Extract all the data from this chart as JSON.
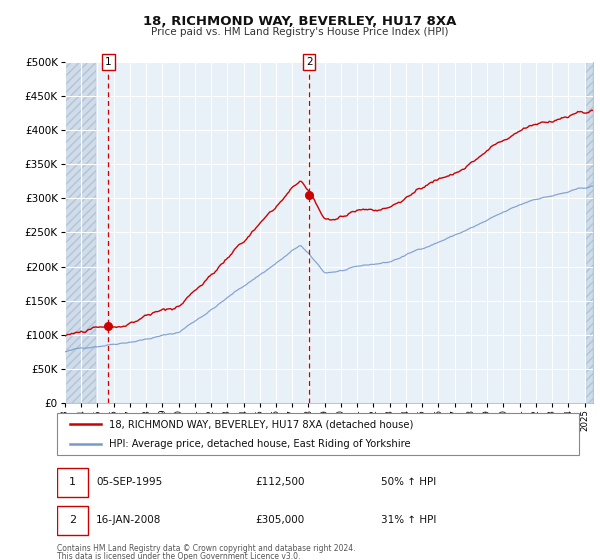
{
  "title": "18, RICHMOND WAY, BEVERLEY, HU17 8XA",
  "subtitle": "Price paid vs. HM Land Registry's House Price Index (HPI)",
  "legend_line1": "18, RICHMOND WAY, BEVERLEY, HU17 8XA (detached house)",
  "legend_line2": "HPI: Average price, detached house, East Riding of Yorkshire",
  "sale1_date": "05-SEP-1995",
  "sale1_price": "£112,500",
  "sale1_hpi": "50% ↑ HPI",
  "sale1_year": 1995.68,
  "sale1_value": 112500,
  "sale2_date": "16-JAN-2008",
  "sale2_price": "£305,000",
  "sale2_hpi": "31% ↑ HPI",
  "sale2_year": 2008.04,
  "sale2_value": 305000,
  "footer1": "Contains HM Land Registry data © Crown copyright and database right 2024.",
  "footer2": "This data is licensed under the Open Government Licence v3.0.",
  "ylim": [
    0,
    500000
  ],
  "yticks": [
    0,
    50000,
    100000,
    150000,
    200000,
    250000,
    300000,
    350000,
    400000,
    450000,
    500000
  ],
  "bg_color": "#e8f0f8",
  "hatch_color": "#d0dce8",
  "grid_color": "#ffffff",
  "red_line_color": "#cc0000",
  "blue_line_color": "#7799cc",
  "dashed_vline_color": "#cc0000",
  "marker_color": "#cc0000",
  "xmin": 1993.0,
  "xmax": 2025.5,
  "hatch_left_end": 1994.95,
  "hatch_right_start": 2025.1
}
